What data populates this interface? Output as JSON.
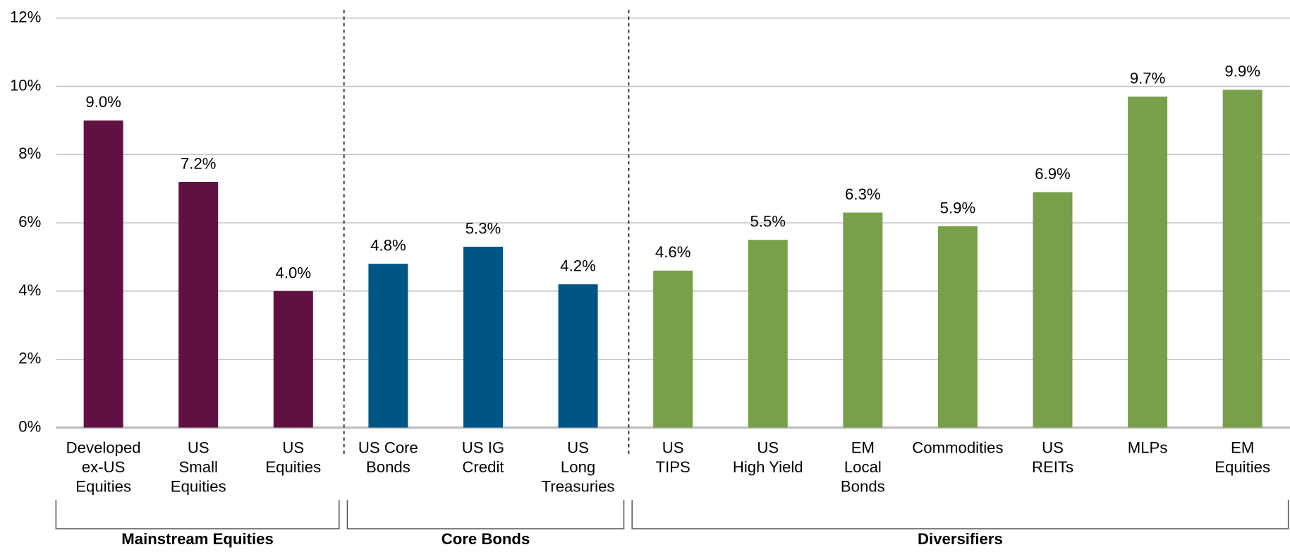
{
  "chart_data": {
    "type": "bar",
    "ylim": [
      0,
      12
    ],
    "yticks": [
      {
        "value": 0,
        "label": "0%"
      },
      {
        "value": 2,
        "label": "2%"
      },
      {
        "value": 4,
        "label": "4%"
      },
      {
        "value": 6,
        "label": "6%"
      },
      {
        "value": 8,
        "label": "8%"
      },
      {
        "value": 10,
        "label": "10%"
      },
      {
        "value": 12,
        "label": "12%"
      }
    ],
    "grid": true,
    "series": [
      {
        "name": "Mainstream Equities",
        "color": "#5f1241",
        "categories": [
          [
            "Developed",
            "ex-US",
            "Equities"
          ],
          [
            "US",
            "Small",
            "Equities"
          ],
          [
            "US",
            "Equities"
          ]
        ],
        "values": [
          9.0,
          7.2,
          4.0
        ],
        "value_labels": [
          "9.0%",
          "7.2%",
          "4.0%"
        ]
      },
      {
        "name": "Core Bonds",
        "color": "#005587",
        "categories": [
          [
            "US Core",
            "Bonds"
          ],
          [
            "US IG",
            "Credit"
          ],
          [
            "US",
            "Long",
            "Treasuries"
          ]
        ],
        "values": [
          4.8,
          5.3,
          4.2
        ],
        "value_labels": [
          "4.8%",
          "5.3%",
          "4.2%"
        ]
      },
      {
        "name": "Diversifiers",
        "color": "#78a04a",
        "categories": [
          [
            "US",
            "TIPS"
          ],
          [
            "US",
            "High Yield"
          ],
          [
            "EM",
            "Local",
            "Bonds"
          ],
          [
            "Commodities"
          ],
          [
            "US",
            "REITs"
          ],
          [
            "MLPs"
          ],
          [
            "EM",
            "Equities"
          ]
        ],
        "values": [
          4.6,
          5.5,
          6.3,
          5.9,
          6.9,
          9.7,
          9.9
        ],
        "value_labels": [
          "4.6%",
          "5.5%",
          "6.3%",
          "5.9%",
          "6.9%",
          "9.7%",
          "9.9%"
        ]
      }
    ]
  }
}
